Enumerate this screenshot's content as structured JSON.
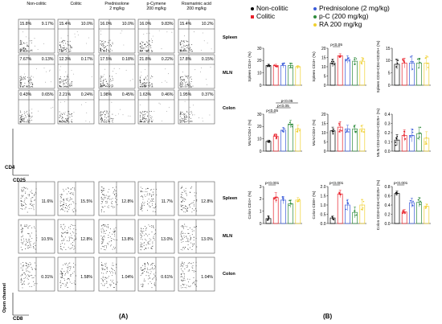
{
  "panel_labels": {
    "a": "(A)",
    "b": "(B)"
  },
  "flow_a": {
    "columns": [
      "Non-colitic",
      "Colitic",
      "Prednisolone\n2 mg/kg",
      "p-Cymene\n200 mg/kg",
      "Rosmarinic acid\n200 mg/kg"
    ],
    "row_labels": [
      "Spleen",
      "MLN",
      "Colon"
    ],
    "y_axis": "CD4",
    "x_axis": "CD25",
    "quadrants": [
      [
        [
          "15.8%",
          "9.17%"
        ],
        [
          "15.4%",
          "10.0%"
        ],
        [
          "16.0%",
          "10.0%"
        ],
        [
          "16.0%",
          "9.83%"
        ],
        [
          "15.4%",
          "10.2%"
        ]
      ],
      [
        [
          "7.67%",
          "0.13%"
        ],
        [
          "12.3%",
          "0.17%"
        ],
        [
          "17.5%",
          "0.18%"
        ],
        [
          "21.8%",
          "0.22%"
        ],
        [
          "17.8%",
          "0.15%"
        ]
      ],
      [
        [
          "0.43%",
          "0.65%"
        ],
        [
          "2.21%",
          "0.24%"
        ],
        [
          "1.98%",
          "0.45%"
        ],
        [
          "1.63%",
          "0.46%"
        ],
        [
          "1.95%",
          "0.37%"
        ]
      ]
    ]
  },
  "flow_b": {
    "row_labels": [
      "Spleen",
      "MLN",
      "Colon"
    ],
    "y_axis": "Open channel",
    "x_axis": "CD8",
    "values": [
      [
        "11.6%",
        "15.5%",
        "12.8%",
        "11.7%",
        "12.8%"
      ],
      [
        "10.5%",
        "12.8%",
        "13.8%",
        "13.0%",
        "13.0%"
      ],
      [
        "0.31%",
        "1.58%",
        "1.04%",
        "0.61%",
        "1.04%"
      ]
    ]
  },
  "legend": [
    {
      "label": "Non-colitic",
      "color": "#000000",
      "shape": "dot"
    },
    {
      "label": "Colitic",
      "color": "#e8202a",
      "shape": "square"
    },
    {
      "label": "Prednisolone (2 mg/kg)",
      "color": "#3a5bd9",
      "shape": "dot"
    },
    {
      "label": "p-C (200 mg/kg)",
      "color": "#2e8b3c",
      "shape": "dot"
    },
    {
      "label": "RA 200 mg/kg",
      "color": "#f0d030",
      "shape": "dot"
    }
  ],
  "chart_data": [
    {
      "type": "bar",
      "ylabel": "Spleen CD4+ (%)",
      "ylim": [
        0,
        30
      ],
      "yticks": [
        "0",
        "10",
        "20",
        "30"
      ],
      "values": [
        16,
        16,
        16,
        16,
        15
      ],
      "errors": [
        1,
        1,
        2,
        2,
        1
      ],
      "annotations": []
    },
    {
      "type": "bar",
      "ylabel": "Spleen CD3+ (%)",
      "ylim": [
        0,
        20
      ],
      "yticks": [
        "0",
        "5",
        "10",
        "15",
        "20"
      ],
      "values": [
        12,
        16,
        14,
        13,
        13
      ],
      "errors": [
        2,
        1,
        2,
        2,
        2
      ],
      "annotations": [
        {
          "text": "p<0.05",
          "from": 0,
          "to": 1
        }
      ]
    },
    {
      "type": "bar",
      "ylabel": "Spleen CD3+CD4+CD25+ (%)",
      "ylim": [
        0,
        15
      ],
      "yticks": [
        "0",
        "5",
        "10",
        "15"
      ],
      "values": [
        8.5,
        9,
        9,
        9,
        9
      ],
      "errors": [
        2,
        2,
        3,
        2,
        3
      ],
      "annotations": []
    },
    {
      "type": "bar",
      "ylabel": "MLN CD4+ (%)",
      "ylim": [
        0,
        30
      ],
      "yticks": [
        "0",
        "10",
        "20",
        "30"
      ],
      "values": [
        8,
        12,
        17,
        22,
        18
      ],
      "errors": [
        1,
        2,
        2,
        3,
        3
      ],
      "annotations": [
        {
          "text": "p<0.05",
          "from": 0,
          "to": 1
        },
        {
          "text": "p<0.05",
          "from": 1,
          "to": 3
        },
        {
          "text": "p<0.05",
          "from": 1,
          "to": 4
        }
      ]
    },
    {
      "type": "bar",
      "ylabel": "MLN CD3+ (%)",
      "ylim": [
        0,
        20
      ],
      "yticks": [
        "0",
        "5",
        "10",
        "15",
        "20"
      ],
      "values": [
        11,
        13,
        12,
        12,
        12
      ],
      "errors": [
        2,
        3,
        2,
        2,
        2
      ],
      "annotations": []
    },
    {
      "type": "bar",
      "ylabel": "MLN CD3+CD4+CD25+ (%)",
      "ylim": [
        0,
        0.4
      ],
      "yticks": [
        "0.0",
        "0.1",
        "0.2",
        "0.3",
        "0.4"
      ],
      "values": [
        0.12,
        0.17,
        0.17,
        0.19,
        0.14
      ],
      "errors": [
        0.06,
        0.06,
        0.07,
        0.07,
        0.07
      ],
      "annotations": []
    },
    {
      "type": "bar",
      "ylabel": "Colon CD4+ (%)",
      "ylim": [
        0,
        3
      ],
      "yticks": [
        "0",
        "1",
        "2",
        "3"
      ],
      "values": [
        0.4,
        2.1,
        1.9,
        1.6,
        1.9
      ],
      "errors": [
        0.2,
        0.4,
        0.3,
        0.3,
        0.2
      ],
      "annotations": [
        {
          "text": "p<0.001",
          "from": 0,
          "to": 1
        }
      ]
    },
    {
      "type": "bar",
      "ylabel": "Colon CD8+ (%)",
      "ylim": [
        0,
        2.0
      ],
      "yticks": [
        "0.0",
        "0.5",
        "1.0",
        "1.5",
        "2.0"
      ],
      "values": [
        0.3,
        1.6,
        1.0,
        0.6,
        1.0
      ],
      "errors": [
        0.1,
        0.2,
        0.3,
        0.3,
        0.3
      ],
      "annotations": [
        {
          "text": "p<0.001",
          "from": 0,
          "to": 1
        }
      ]
    },
    {
      "type": "bar",
      "ylabel": "Colon CD3+CD4+CD25+ (%)",
      "ylim": [
        0,
        0.8
      ],
      "yticks": [
        "0.0",
        "0.2",
        "0.4",
        "0.6",
        "0.8"
      ],
      "values": [
        0.65,
        0.25,
        0.45,
        0.46,
        0.37
      ],
      "errors": [
        0.05,
        0.05,
        0.1,
        0.1,
        0.05
      ],
      "annotations": [
        {
          "text": "p<0.001",
          "from": 0,
          "to": 1
        }
      ]
    }
  ]
}
